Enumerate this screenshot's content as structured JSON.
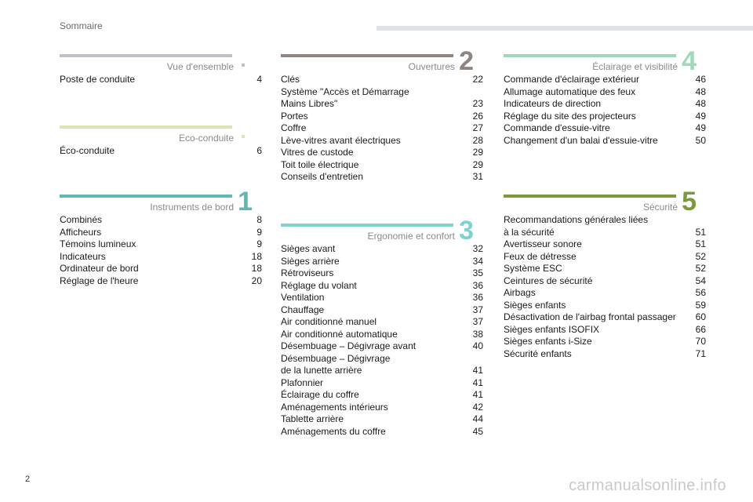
{
  "header": {
    "title": "Sommaire"
  },
  "page_number": "2",
  "watermark": "carmanualsonline.info",
  "sections": {
    "vue": {
      "title": "Vue d'ensemble",
      "numeral": "",
      "color": "#c3bfc9",
      "entries": [
        {
          "label": "Poste de conduite",
          "page": "4"
        }
      ]
    },
    "eco": {
      "title": "Eco-conduite",
      "numeral": "",
      "color": "#dfe2b4",
      "entries": [
        {
          "label": "Éco-conduite",
          "page": "6"
        }
      ]
    },
    "instruments": {
      "title": "Instruments de bord",
      "numeral": "1",
      "color": "#5fb8b3",
      "entries": [
        {
          "label": "Combinés",
          "page": "8"
        },
        {
          "label": "Afficheurs",
          "page": "9"
        },
        {
          "label": "Témoins lumineux",
          "page": "9"
        },
        {
          "label": "Indicateurs",
          "page": "18"
        },
        {
          "label": "Ordinateur de bord",
          "page": "18"
        },
        {
          "label": "Réglage de l'heure",
          "page": "20"
        }
      ]
    },
    "ouvertures": {
      "title": "Ouvertures",
      "numeral": "2",
      "color": "#8f8580",
      "entries": [
        {
          "label": "Clés",
          "page": "22"
        },
        {
          "label": "Système \"Accès et Démarrage\nMains Libres\"",
          "page": "23"
        },
        {
          "label": "Portes",
          "page": "26"
        },
        {
          "label": "Coffre",
          "page": "27"
        },
        {
          "label": "Lève-vitres avant électriques",
          "page": "28"
        },
        {
          "label": "Vitres de custode",
          "page": "29"
        },
        {
          "label": "Toit toile électrique",
          "page": "29"
        },
        {
          "label": "Conseils d'entretien",
          "page": "31"
        }
      ]
    },
    "ergonomie": {
      "title": "Ergonomie et confort",
      "numeral": "3",
      "color": "#7fd3cf",
      "entries": [
        {
          "label": "Sièges avant",
          "page": "32"
        },
        {
          "label": "Sièges arrière",
          "page": "34"
        },
        {
          "label": "Rétroviseurs",
          "page": "35"
        },
        {
          "label": "Réglage du volant",
          "page": "36"
        },
        {
          "label": "Ventilation",
          "page": "36"
        },
        {
          "label": "Chauffage",
          "page": "37"
        },
        {
          "label": "Air conditionné manuel",
          "page": "37"
        },
        {
          "label": "Air conditionné automatique",
          "page": "38"
        },
        {
          "label": "Désembuage – Dégivrage avant",
          "page": "40"
        },
        {
          "label": "Désembuage – Dégivrage\nde la lunette arrière",
          "page": "41"
        },
        {
          "label": "Plafonnier",
          "page": "41"
        },
        {
          "label": "Éclairage du coffre",
          "page": "41"
        },
        {
          "label": "Aménagements intérieurs",
          "page": "42"
        },
        {
          "label": "Tablette arrière",
          "page": "44"
        },
        {
          "label": "Aménagements du coffre",
          "page": "45"
        }
      ]
    },
    "eclairage": {
      "title": "Éclairage et visibilité",
      "numeral": "4",
      "color": "#9fd9ba",
      "entries": [
        {
          "label": "Commande d'éclairage extérieur",
          "page": "46"
        },
        {
          "label": "Allumage automatique des feux",
          "page": "48"
        },
        {
          "label": "Indicateurs de direction",
          "page": "48"
        },
        {
          "label": "Réglage du site des projecteurs",
          "page": "49"
        },
        {
          "label": "Commande d'essuie-vitre",
          "page": "49"
        },
        {
          "label": "Changement d'un balai d'essuie-vitre",
          "page": "50"
        }
      ]
    },
    "securite": {
      "title": "Sécurité",
      "numeral": "5",
      "color": "#7a9a3c",
      "entries": [
        {
          "label": "Recommandations générales liées\nà la sécurité",
          "page": "51"
        },
        {
          "label": "Avertisseur sonore",
          "page": "51"
        },
        {
          "label": "Feux de détresse",
          "page": "52"
        },
        {
          "label": "Système ESC",
          "page": "52"
        },
        {
          "label": "Ceintures de sécurité",
          "page": "54"
        },
        {
          "label": "Airbags",
          "page": "56"
        },
        {
          "label": "Sièges enfants",
          "page": "59"
        },
        {
          "label": "Désactivation de l'airbag frontal passager",
          "page": "60"
        },
        {
          "label": "Sièges enfants ISOFIX",
          "page": "66"
        },
        {
          "label": "Sièges enfants i-Size",
          "page": "70"
        },
        {
          "label": "Sécurité enfants",
          "page": "71"
        }
      ]
    }
  }
}
